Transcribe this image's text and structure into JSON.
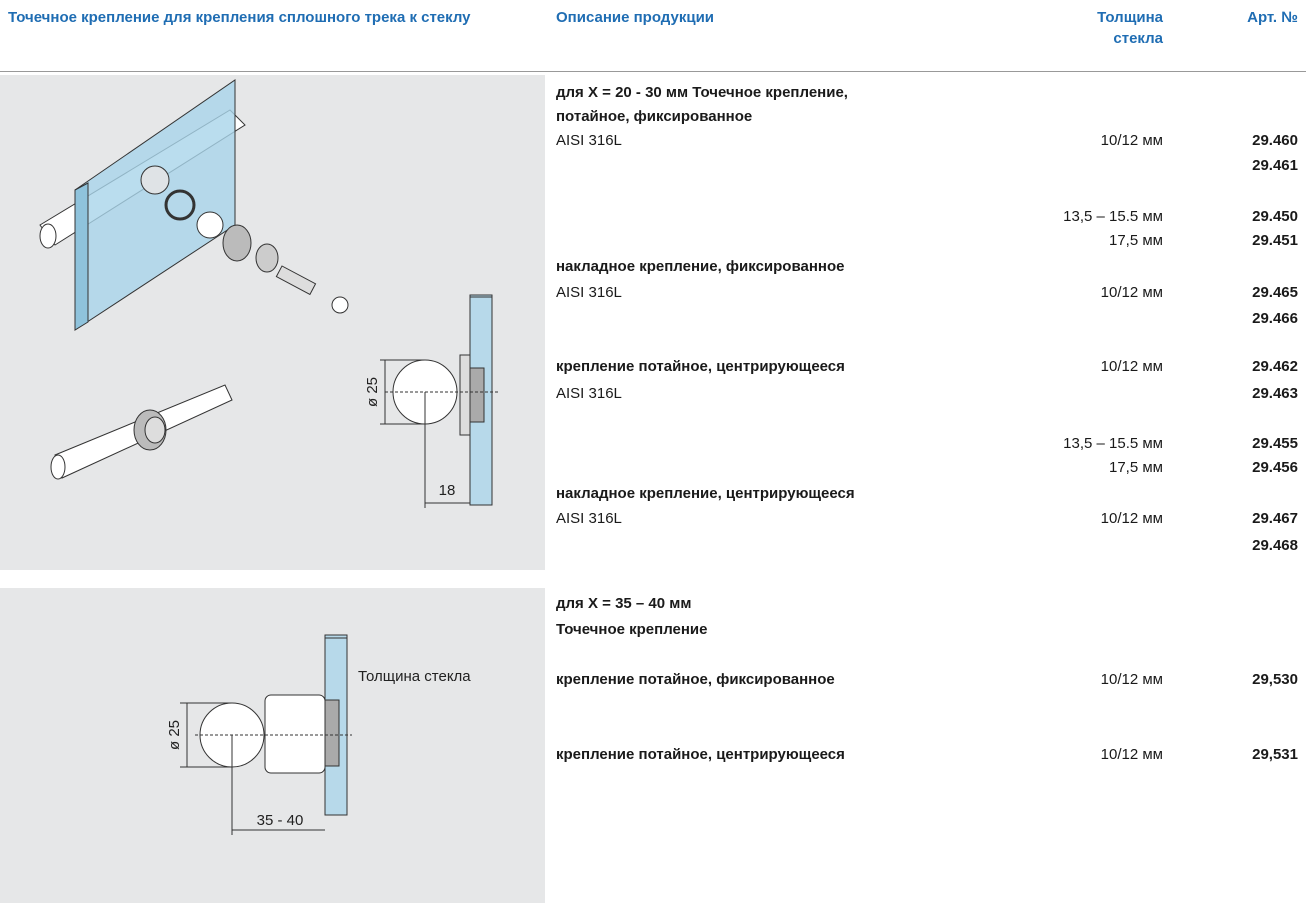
{
  "header": {
    "title": "Точечное крепление для крепления сплошного трека к стеклу",
    "description": "Описание продукции",
    "thickness": "Толщина стекла",
    "article": "Арт. №"
  },
  "sections": [
    {
      "drawing_labels": {
        "diameter": "ø 25",
        "offset": "18"
      },
      "lines": [
        {
          "text": "для X = 20 - 30 мм Точечное крепление,"
        },
        {
          "text": "потайное, фиксированное"
        },
        {
          "text": "AISI 316L",
          "thickness": "10/12 мм",
          "article": "29.460"
        },
        {
          "article": "29.461"
        },
        {
          "thickness": "13,5 – 15.5 мм",
          "article": "29.450"
        },
        {
          "thickness": "17,5 мм",
          "article": "29.451"
        },
        {
          "text": "накладное крепление, фиксированное"
        },
        {
          "text": "AISI 316L",
          "thickness": "10/12 мм",
          "article": "29.465"
        },
        {
          "article": "29.466"
        },
        {
          "text": "крепление потайное, центрирующееся",
          "thickness": "10/12 мм",
          "article": "29.462"
        },
        {
          "text": "AISI 316L",
          "article": "29.463"
        },
        {
          "thickness": "13,5 – 15.5 мм",
          "article": "29.455"
        },
        {
          "thickness": "17,5 мм",
          "article": "29.456"
        },
        {
          "text": "накладное крепление, центрирующееся"
        },
        {
          "text": "AISI 316L",
          "thickness": "10/12 мм",
          "article": "29.467"
        },
        {
          "article": "29.468"
        }
      ]
    },
    {
      "drawing_labels": {
        "diameter": "ø 25",
        "offset": "35 - 40",
        "glass": "Толщина стекла"
      },
      "lines": [
        {
          "text": "для X = 35 – 40 мм"
        },
        {
          "text": "Точечное крепление"
        },
        {
          "text": "крепление потайное, фиксированное",
          "thickness": "10/12 мм",
          "article": "29,530"
        },
        {
          "text": "крепление потайное, центрирующееся",
          "thickness": "10/12 мм",
          "article": "29,531"
        }
      ]
    }
  ]
}
